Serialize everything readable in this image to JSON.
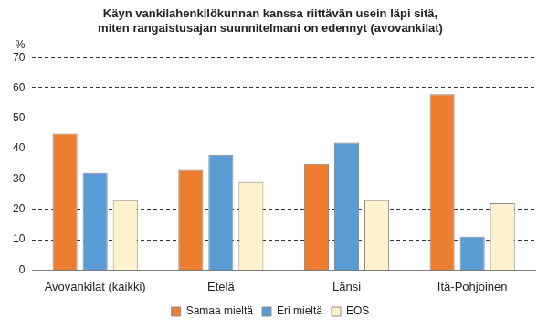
{
  "chart_data": {
    "type": "bar",
    "title": [
      "Käyn vankilahenkilökunnan kanssa riittävän usein läpi sitä,",
      "miten rangaistusajan suunnitelmani on edennyt (avovankilat)"
    ],
    "y_label": "%",
    "categories": [
      "Avovankilat (kaikki)",
      "Etelä",
      "Länsi",
      "Itä-Pohjoinen"
    ],
    "series": [
      {
        "name": "Samaa mieltä",
        "color": "#ed7d31",
        "values": [
          45,
          33,
          35,
          58
        ]
      },
      {
        "name": "Eri mieltä",
        "color": "#5b9bd5",
        "values": [
          32,
          38,
          42,
          11
        ]
      },
      {
        "name": "EOS",
        "color": "#fff2cc",
        "values": [
          23,
          29,
          23,
          22
        ]
      }
    ],
    "ylim": [
      0,
      70
    ],
    "yticks": [
      0,
      10,
      20,
      30,
      40,
      50,
      60,
      70
    ],
    "grid": true,
    "legend": "bottom"
  }
}
